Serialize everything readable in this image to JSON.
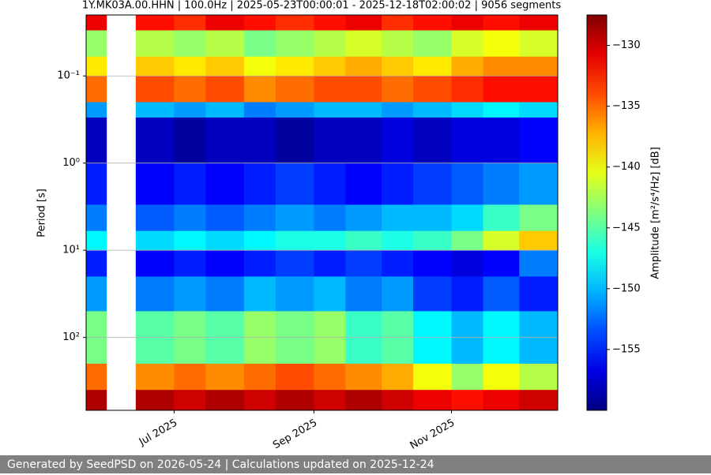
{
  "chart_data": {
    "type": "heatmap",
    "title": "1Y.MK03A.00.HHN | 100.0Hz | 2025-05-23T00:00:01 - 2025-12-18T02:00:02 | 9056 segments",
    "y_label": "Period [s]",
    "colorbar_label": "Amplitude [m²/s⁴/Hz] [dB]",
    "x": [
      "2025-05-23",
      "2025-06-01",
      "2025-06-14",
      "2025-07-01",
      "2025-07-15",
      "2025-08-01",
      "2025-08-15",
      "2025-09-01",
      "2025-09-15",
      "2025-10-01",
      "2025-10-15",
      "2025-11-01",
      "2025-11-15",
      "2025-12-01"
    ],
    "xlim": [
      "2025-05-23T00:00:01",
      "2025-12-18T02:00:02"
    ],
    "xticks": [
      {
        "value": "2025-07",
        "label": "Jul 2025"
      },
      {
        "value": "2025-09",
        "label": "Sep 2025"
      },
      {
        "value": "2025-11",
        "label": "Nov 2025"
      }
    ],
    "period_bins": [
      0.02,
      0.03,
      0.06,
      0.1,
      0.2,
      0.3,
      1,
      3,
      6,
      10,
      20,
      50,
      200,
      400,
      685
    ],
    "ylim": [
      0.02,
      685
    ],
    "y_log": true,
    "y_inverted": true,
    "yticks": [
      {
        "value": 0.1,
        "label": "10⁻¹"
      },
      {
        "value": 1,
        "label": "10⁰"
      },
      {
        "value": 10,
        "label": "10¹"
      },
      {
        "value": 100,
        "label": "10²"
      }
    ],
    "grid": true,
    "colormap": "jet",
    "clim": [
      -160,
      -127.5
    ],
    "colorbar_ticks": [
      {
        "value": -130,
        "label": "−130"
      },
      {
        "value": -135,
        "label": "−135"
      },
      {
        "value": -140,
        "label": "−140"
      },
      {
        "value": -145,
        "label": "−145"
      },
      {
        "value": -150,
        "label": "−150"
      },
      {
        "value": -155,
        "label": "−155"
      }
    ],
    "z": [
      [
        -131,
        null,
        -132,
        -133,
        -131,
        -132,
        -133,
        -132,
        -131,
        -133,
        -132,
        -131,
        -132,
        -131
      ],
      [
        -143,
        null,
        -142,
        -143,
        -142,
        -144,
        -143,
        -142,
        -141,
        -142,
        -143,
        -141,
        -140,
        -141
      ],
      [
        -139,
        null,
        -138,
        -139,
        -138,
        -140,
        -139,
        -138,
        -137,
        -138,
        -139,
        -137,
        -136,
        -136
      ],
      [
        -135,
        null,
        -134,
        -135,
        -134,
        -136,
        -135,
        -134,
        -134,
        -135,
        -134,
        -133,
        -132,
        -132
      ],
      [
        -151,
        null,
        -150,
        -151,
        -150,
        -152,
        -151,
        -150,
        -150,
        -151,
        -150,
        -149,
        -148,
        -149
      ],
      [
        -158,
        null,
        -158,
        -159,
        -158,
        -158,
        -159,
        -158,
        -158,
        -157,
        -158,
        -157,
        -157,
        -156
      ],
      [
        -155,
        null,
        -156,
        -155,
        -156,
        -155,
        -154,
        -155,
        -156,
        -155,
        -154,
        -153,
        -152,
        -151
      ],
      [
        -152,
        null,
        -153,
        -152,
        -153,
        -152,
        -151,
        -152,
        -151,
        -150,
        -150,
        -149,
        -146,
        -144
      ],
      [
        -148,
        null,
        -149,
        -148,
        -149,
        -148,
        -147,
        -147,
        -146,
        -147,
        -146,
        -144,
        -141,
        -138
      ],
      [
        -155,
        null,
        -156,
        -155,
        -156,
        -155,
        -154,
        -155,
        -154,
        -155,
        -156,
        -157,
        -156,
        -152
      ],
      [
        -151,
        null,
        -152,
        -151,
        -152,
        -150,
        -151,
        -150,
        -152,
        -151,
        -154,
        -155,
        -153,
        -155
      ],
      [
        -144,
        null,
        -145,
        -144,
        -145,
        -143,
        -144,
        -143,
        -146,
        -145,
        -148,
        -150,
        -148,
        -150
      ],
      [
        -135,
        null,
        -136,
        -135,
        -136,
        -135,
        -134,
        -135,
        -136,
        -137,
        -140,
        -143,
        -140,
        -142
      ],
      [
        -129,
        null,
        -129,
        -130,
        -129,
        -130,
        -129,
        -130,
        -129,
        -130,
        -131,
        -132,
        -131,
        -130
      ]
    ]
  },
  "footer": "Generated by SeedPSD on 2026-05-24 | Calculations updated on 2025-12-24"
}
